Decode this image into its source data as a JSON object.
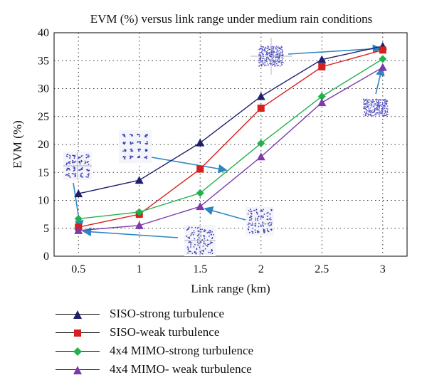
{
  "chart_data": {
    "type": "line",
    "title": "EVM (%) versus link range under medium rain conditions",
    "xlabel": "Link range (km)",
    "ylabel": "EVM (%)",
    "xlim": [
      0.3,
      3.2
    ],
    "ylim": [
      0,
      40
    ],
    "x": [
      0.5,
      1,
      1.5,
      2,
      2.5,
      3
    ],
    "x_tick_labels": [
      "0.5",
      "1",
      "1.5",
      "2",
      "2.5",
      "3"
    ],
    "y_ticks": [
      0,
      5,
      10,
      15,
      20,
      25,
      30,
      35,
      40
    ],
    "grid": true,
    "legend_position": "below",
    "series": [
      {
        "name": "SISO-strong turbulence",
        "color": "#1f1f6e",
        "marker": "triangle",
        "values": [
          11.2,
          13.6,
          20.3,
          28.6,
          35.2,
          37.6
        ]
      },
      {
        "name": "SISO-weak turbulence",
        "color": "#d6201e",
        "marker": "square",
        "values": [
          5.2,
          7.5,
          15.6,
          26.5,
          33.9,
          36.9
        ]
      },
      {
        "name": "4x4 MIMO-strong turbulence",
        "color": "#22b14c",
        "marker": "diamond",
        "values": [
          6.7,
          7.9,
          11.3,
          20.2,
          28.6,
          35.3
        ]
      },
      {
        "name": "4x4 MIMO- weak turbulence",
        "color": "#7e3aa8",
        "marker": "triangle",
        "values": [
          4.6,
          5.5,
          8.9,
          17.8,
          27.5,
          33.8
        ]
      }
    ],
    "arrow_color": "#2e86c1"
  }
}
